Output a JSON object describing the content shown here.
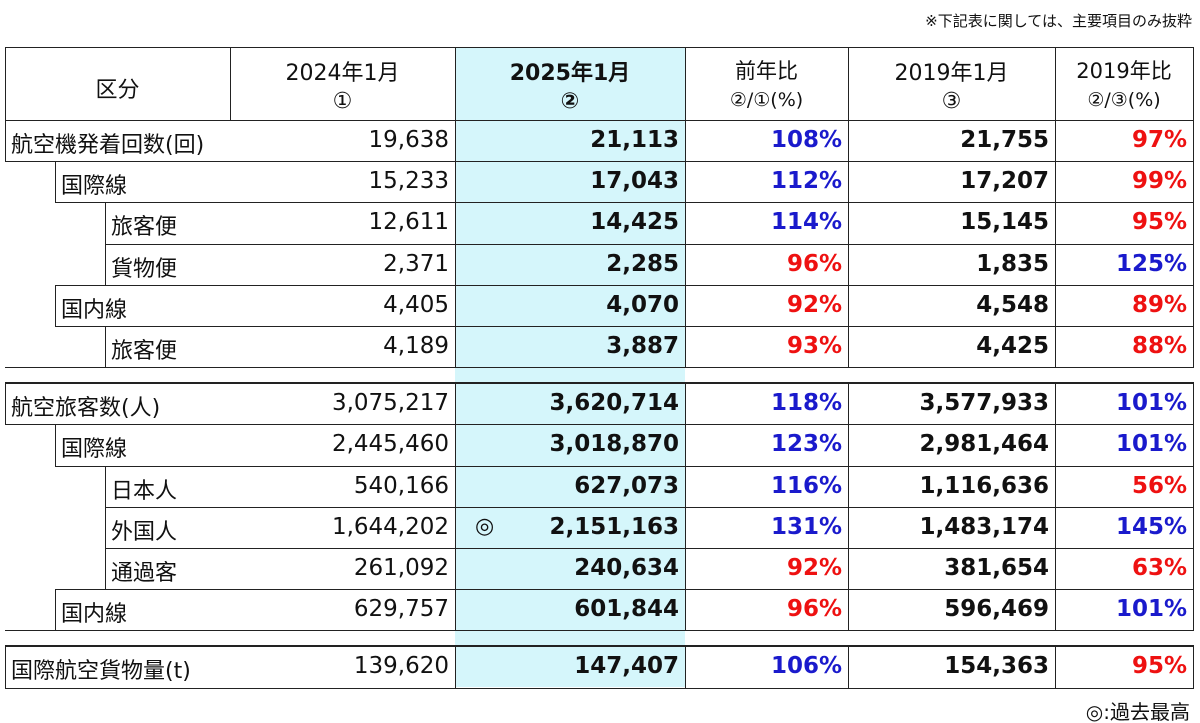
{
  "note": "※下記表に関しては、主要項目のみ抜粋",
  "header": [
    [
      "区分"
    ],
    [
      "2024年1月",
      "①"
    ],
    [
      "2025年1月",
      "②"
    ],
    [
      "前年比",
      "②/①(%)"
    ],
    [
      "2019年1月",
      "③"
    ],
    [
      "2019年比",
      "②/③(%)"
    ]
  ],
  "groups": [
    {
      "rows": [
        {
          "label": "航空機発着回数(回)",
          "level": 0,
          "cells": [
            "19,638",
            "21,113",
            "108%",
            "21,755",
            "97%"
          ],
          "pct_colors": [
            "#1a1acc",
            "#ee1111"
          ]
        },
        {
          "label": "国際線",
          "level": 1,
          "cells": [
            "15,233",
            "17,043",
            "112%",
            "17,207",
            "99%"
          ],
          "pct_colors": [
            "#1a1acc",
            "#ee1111"
          ]
        },
        {
          "label": "旅客便",
          "level": 2,
          "cells": [
            "12,611",
            "14,425",
            "114%",
            "15,145",
            "95%"
          ],
          "pct_colors": [
            "#1a1acc",
            "#ee1111"
          ]
        },
        {
          "label": "貨物便",
          "level": 2,
          "cells": [
            "2,371",
            "2,285",
            "96%",
            "1,835",
            "125%"
          ],
          "pct_colors": [
            "#ee1111",
            "#1a1acc"
          ]
        },
        {
          "label": "国内線",
          "level": 1,
          "cells": [
            "4,405",
            "4,070",
            "92%",
            "4,548",
            "89%"
          ],
          "pct_colors": [
            "#ee1111",
            "#ee1111"
          ]
        },
        {
          "label": "旅客便",
          "level": 2,
          "cells": [
            "4,189",
            "3,887",
            "93%",
            "4,425",
            "88%"
          ],
          "pct_colors": [
            "#ee1111",
            "#ee1111"
          ]
        }
      ]
    },
    {
      "rows": [
        {
          "label": "航空旅客数(人)",
          "level": 0,
          "cells": [
            "3,075,217",
            "3,620,714",
            "118%",
            "3,577,933",
            "101%"
          ],
          "pct_colors": [
            "#1a1acc",
            "#1a1acc"
          ]
        },
        {
          "label": "国際線",
          "level": 1,
          "cells": [
            "2,445,460",
            "3,018,870",
            "123%",
            "2,981,464",
            "101%"
          ],
          "pct_colors": [
            "#1a1acc",
            "#1a1acc"
          ]
        },
        {
          "label": "日本人",
          "level": 2,
          "cells": [
            "540,166",
            "627,073",
            "116%",
            "1,116,636",
            "56%"
          ],
          "pct_colors": [
            "#1a1acc",
            "#ee1111"
          ]
        },
        {
          "label": "外国人",
          "level": 2,
          "mark": "◎",
          "cells": [
            "1,644,202",
            "2,151,163",
            "131%",
            "1,483,174",
            "145%"
          ],
          "pct_colors": [
            "#1a1acc",
            "#1a1acc"
          ]
        },
        {
          "label": "通過客",
          "level": 2,
          "cells": [
            "261,092",
            "240,634",
            "92%",
            "381,654",
            "63%"
          ],
          "pct_colors": [
            "#ee1111",
            "#ee1111"
          ]
        },
        {
          "label": "国内線",
          "level": 1,
          "cells": [
            "629,757",
            "601,844",
            "96%",
            "596,469",
            "101%"
          ],
          "pct_colors": [
            "#ee1111",
            "#1a1acc"
          ]
        }
      ]
    },
    {
      "rows": [
        {
          "label": "国際航空貨物量(t)",
          "level": 0,
          "cells": [
            "139,620",
            "147,407",
            "106%",
            "154,363",
            "95%"
          ],
          "pct_colors": [
            "#1a1acc",
            "#ee1111"
          ]
        }
      ]
    }
  ],
  "footnote": "◎:過去最高"
}
